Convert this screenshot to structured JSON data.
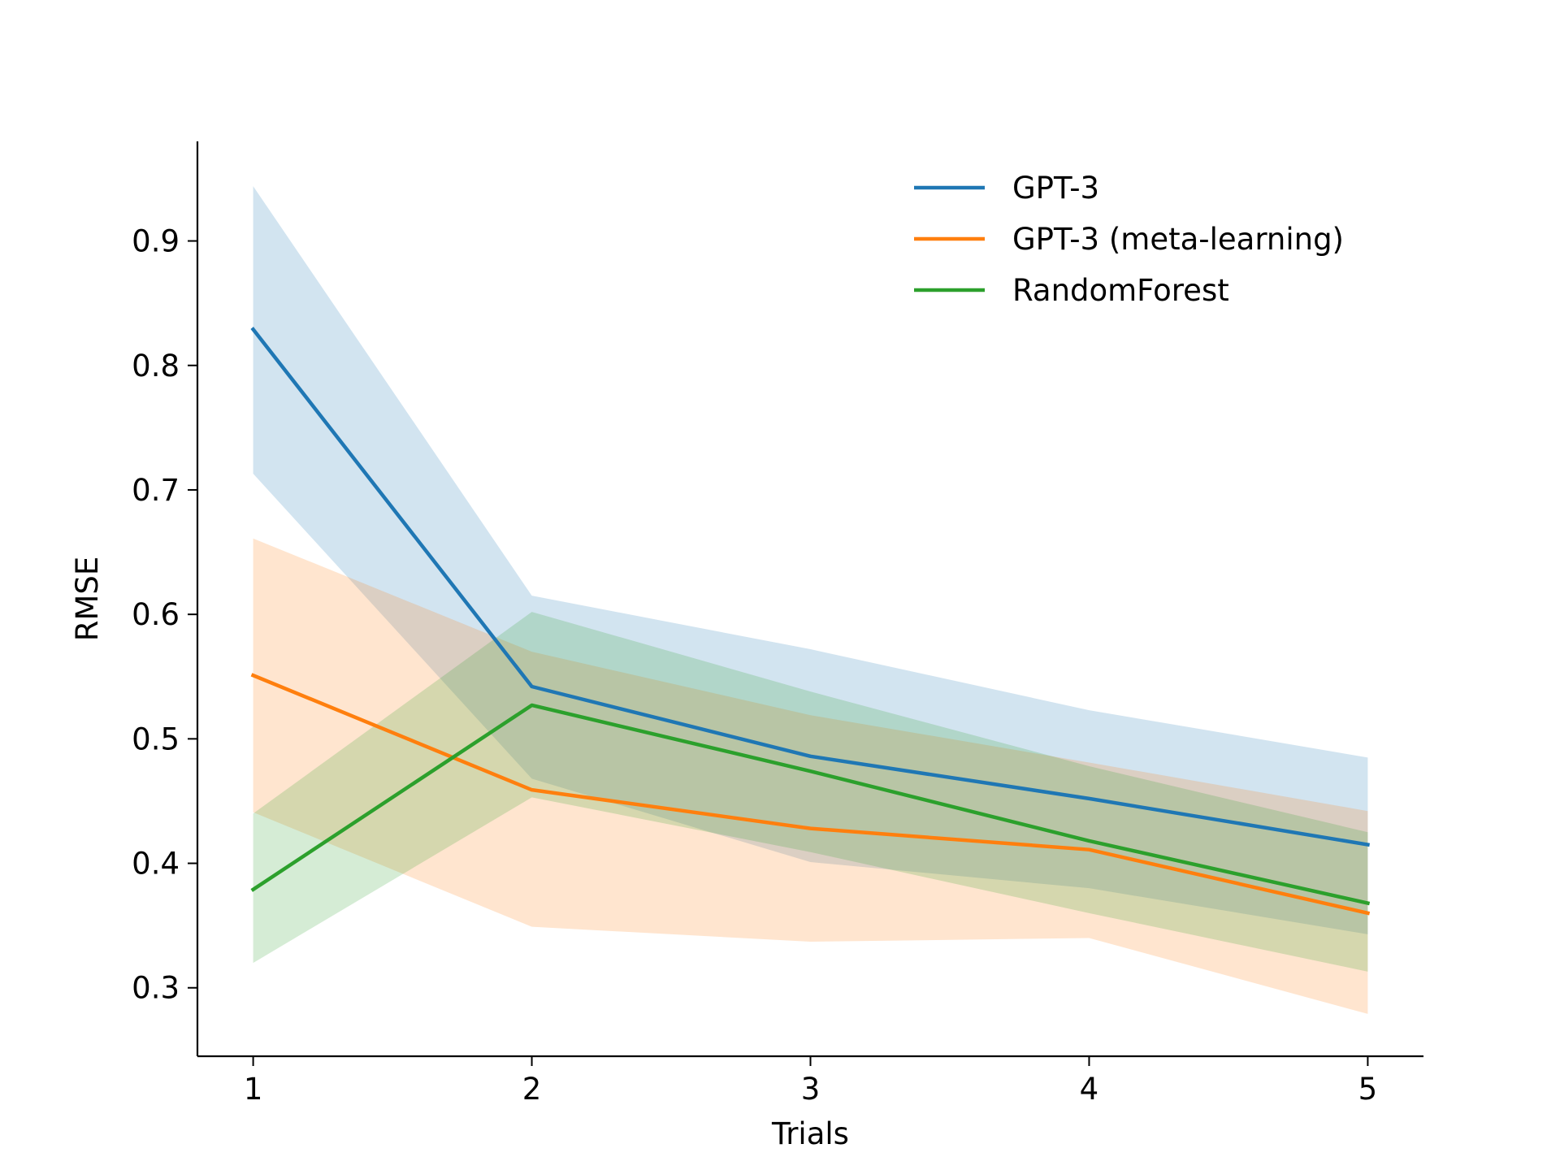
{
  "chart_data": {
    "type": "line",
    "xlabel": "Trials",
    "ylabel": "RMSE",
    "x": [
      1,
      2,
      3,
      4,
      5
    ],
    "xlim": [
      0.8,
      5.2
    ],
    "ylim": [
      0.245,
      0.98
    ],
    "xticks": [
      1,
      2,
      3,
      4,
      5
    ],
    "xtick_labels": [
      "1",
      "2",
      "3",
      "4",
      "5"
    ],
    "yticks": [
      0.3,
      0.4,
      0.5,
      0.6,
      0.7,
      0.8,
      0.9
    ],
    "ytick_labels": [
      "0.3",
      "0.4",
      "0.5",
      "0.6",
      "0.7",
      "0.8",
      "0.9"
    ],
    "grid": false,
    "legend": "top-right",
    "series": [
      {
        "name": "GPT-3",
        "color": "#1f77b4",
        "values": [
          0.829,
          0.542,
          0.486,
          0.452,
          0.415
        ],
        "lower": [
          0.713,
          0.468,
          0.401,
          0.38,
          0.343
        ],
        "upper": [
          0.944,
          0.615,
          0.572,
          0.523,
          0.485
        ]
      },
      {
        "name": "GPT-3 (meta-learning)",
        "color": "#ff7f0e",
        "values": [
          0.551,
          0.459,
          0.428,
          0.411,
          0.36
        ],
        "lower": [
          0.441,
          0.349,
          0.337,
          0.34,
          0.279
        ],
        "upper": [
          0.661,
          0.57,
          0.519,
          0.481,
          0.442
        ]
      },
      {
        "name": "RandomForest",
        "color": "#2ca02c",
        "values": [
          0.379,
          0.527,
          0.474,
          0.418,
          0.368
        ],
        "lower": [
          0.32,
          0.453,
          0.409,
          0.36,
          0.313
        ],
        "upper": [
          0.44,
          0.602,
          0.538,
          0.478,
          0.425
        ]
      }
    ]
  }
}
